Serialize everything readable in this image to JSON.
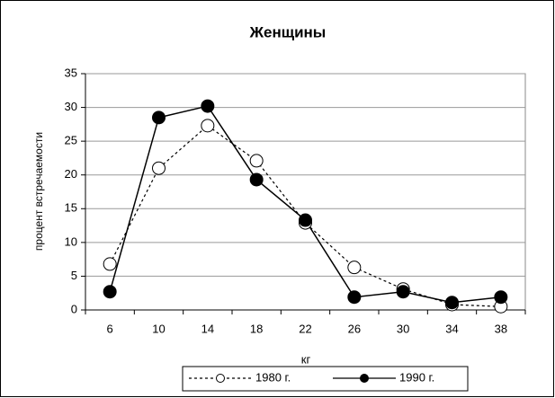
{
  "chart_data": {
    "type": "line",
    "title": "Женщины",
    "xlabel": "кг",
    "ylabel": "процент встречаемости",
    "categories": [
      "6",
      "10",
      "14",
      "18",
      "22",
      "26",
      "30",
      "34",
      "38"
    ],
    "series": [
      {
        "name": "1980 г.",
        "color": "#000000",
        "dash": "dotted",
        "marker": "open",
        "values": [
          6.8,
          21,
          27.3,
          22.1,
          12.9,
          6.3,
          3.1,
          0.8,
          0.5
        ]
      },
      {
        "name": "1990 г.",
        "color": "#000000",
        "dash": "solid",
        "marker": "filled",
        "values": [
          2.7,
          28.5,
          30.2,
          19.3,
          13.3,
          1.9,
          2.7,
          1.1,
          1.9
        ]
      }
    ],
    "ylim": [
      0,
      35
    ],
    "yticks": [
      0,
      5,
      10,
      15,
      20,
      25,
      30,
      35
    ],
    "grid": true,
    "legend": "bottom"
  }
}
